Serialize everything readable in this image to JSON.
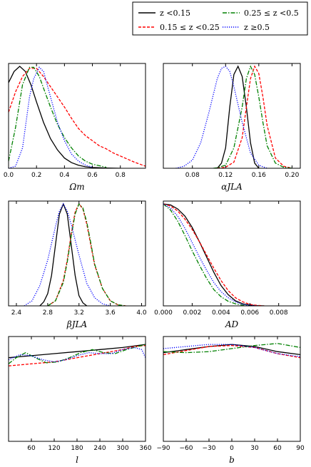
{
  "legend": {
    "entries": [
      {
        "label": "z <0.15",
        "color": "#000000",
        "dash": "solid"
      },
      {
        "label": "0.15 ≤ z <0.25",
        "color": "#ff0000",
        "dash": "dashed"
      },
      {
        "label": "0.25 ≤ z <0.5",
        "color": "#008000",
        "dash": "dashdot"
      },
      {
        "label": "z ≥0.5",
        "color": "#0000ff",
        "dash": "dotted"
      }
    ]
  },
  "chart_data": [
    {
      "type": "line",
      "xlabel": "Ωm",
      "xlim": [
        0,
        0.98
      ],
      "xticks": [
        0.0,
        0.2,
        0.4,
        0.6,
        0.8
      ],
      "tick_labels": [
        "0.0",
        "0.2",
        "0.4",
        "0.6",
        "0.8"
      ],
      "series": [
        {
          "x": [
            0.0,
            0.04,
            0.08,
            0.12,
            0.16,
            0.2,
            0.25,
            0.3,
            0.35,
            0.4,
            0.45,
            0.5,
            0.55,
            0.6,
            0.7,
            0.8
          ],
          "y": [
            0.84,
            0.95,
            1.0,
            0.95,
            0.82,
            0.65,
            0.45,
            0.29,
            0.18,
            0.1,
            0.055,
            0.03,
            0.015,
            0.008,
            0.003,
            0.0
          ]
        },
        {
          "x": [
            0.0,
            0.05,
            0.1,
            0.15,
            0.2,
            0.25,
            0.3,
            0.35,
            0.4,
            0.45,
            0.5,
            0.55,
            0.6,
            0.65,
            0.7,
            0.75,
            0.8,
            0.85,
            0.9,
            0.98
          ],
          "y": [
            0.55,
            0.75,
            0.9,
            0.98,
            0.98,
            0.9,
            0.8,
            0.7,
            0.6,
            0.49,
            0.39,
            0.32,
            0.27,
            0.22,
            0.19,
            0.15,
            0.12,
            0.09,
            0.06,
            0.02
          ]
        },
        {
          "x": [
            0.0,
            0.05,
            0.1,
            0.15,
            0.18,
            0.22,
            0.26,
            0.3,
            0.35,
            0.4,
            0.45,
            0.5,
            0.55,
            0.6,
            0.7
          ],
          "y": [
            0.07,
            0.4,
            0.82,
            0.99,
            0.99,
            0.9,
            0.75,
            0.6,
            0.43,
            0.3,
            0.2,
            0.12,
            0.07,
            0.04,
            0.01
          ]
        },
        {
          "x": [
            0.0,
            0.05,
            0.1,
            0.15,
            0.18,
            0.22,
            0.25,
            0.3,
            0.35,
            0.4,
            0.45,
            0.5,
            0.55,
            0.6
          ],
          "y": [
            0.0,
            0.02,
            0.2,
            0.7,
            0.88,
            0.99,
            0.95,
            0.7,
            0.45,
            0.27,
            0.14,
            0.07,
            0.03,
            0.01
          ]
        }
      ]
    },
    {
      "type": "line",
      "xlabel": "αJLA",
      "xlim": [
        0.045,
        0.21
      ],
      "xticks": [
        0.08,
        0.12,
        0.16,
        0.2
      ],
      "tick_labels": [
        "0.08",
        "0.12",
        "0.16",
        "0.20"
      ],
      "series": [
        {
          "x": [
            0.11,
            0.115,
            0.12,
            0.125,
            0.13,
            0.135,
            0.14,
            0.145,
            0.15,
            0.155,
            0.16
          ],
          "y": [
            0.0,
            0.05,
            0.2,
            0.6,
            0.92,
            1.0,
            0.9,
            0.6,
            0.25,
            0.05,
            0.0
          ]
        },
        {
          "x": [
            0.11,
            0.12,
            0.13,
            0.14,
            0.145,
            0.15,
            0.155,
            0.16,
            0.165,
            0.17,
            0.18,
            0.19,
            0.2
          ],
          "y": [
            0.0,
            0.01,
            0.06,
            0.3,
            0.6,
            0.88,
            1.0,
            0.93,
            0.7,
            0.42,
            0.1,
            0.02,
            0.0
          ]
        },
        {
          "x": [
            0.105,
            0.11,
            0.12,
            0.13,
            0.14,
            0.145,
            0.15,
            0.155,
            0.16,
            0.165,
            0.17,
            0.18,
            0.19,
            0.2
          ],
          "y": [
            0.0,
            0.005,
            0.03,
            0.2,
            0.6,
            0.88,
            1.0,
            0.92,
            0.7,
            0.45,
            0.22,
            0.05,
            0.01,
            0.0
          ]
        },
        {
          "x": [
            0.06,
            0.07,
            0.08,
            0.09,
            0.1,
            0.11,
            0.115,
            0.12,
            0.125,
            0.13,
            0.14,
            0.15,
            0.16,
            0.17
          ],
          "y": [
            0.0,
            0.02,
            0.08,
            0.25,
            0.55,
            0.88,
            0.98,
            1.0,
            0.95,
            0.8,
            0.45,
            0.15,
            0.03,
            0.0
          ]
        }
      ]
    },
    {
      "type": "line",
      "xlabel": "βJLA",
      "xlim": [
        2.3,
        4.05
      ],
      "xticks": [
        2.4,
        2.8,
        3.2,
        3.6,
        4.0
      ],
      "tick_labels": [
        "2.4",
        "2.8",
        "3.2",
        "3.6",
        "4.0"
      ],
      "series": [
        {
          "x": [
            2.7,
            2.75,
            2.8,
            2.85,
            2.9,
            2.95,
            3.0,
            3.05,
            3.1,
            3.15,
            3.2,
            3.25,
            3.3
          ],
          "y": [
            0.0,
            0.04,
            0.12,
            0.3,
            0.6,
            0.9,
            1.0,
            0.9,
            0.6,
            0.3,
            0.1,
            0.03,
            0.0
          ]
        },
        {
          "x": [
            2.8,
            2.9,
            3.0,
            3.05,
            3.1,
            3.15,
            3.2,
            3.25,
            3.3,
            3.35,
            3.4,
            3.5,
            3.6,
            3.7,
            3.8
          ],
          "y": [
            0.0,
            0.05,
            0.25,
            0.45,
            0.7,
            0.92,
            1.0,
            0.95,
            0.8,
            0.6,
            0.4,
            0.17,
            0.05,
            0.01,
            0.0
          ]
        },
        {
          "x": [
            2.8,
            2.9,
            3.0,
            3.05,
            3.1,
            3.15,
            3.2,
            3.25,
            3.3,
            3.35,
            3.4,
            3.5,
            3.6,
            3.7,
            3.8
          ],
          "y": [
            0.0,
            0.05,
            0.23,
            0.43,
            0.68,
            0.9,
            1.0,
            0.96,
            0.82,
            0.62,
            0.41,
            0.17,
            0.05,
            0.01,
            0.0
          ]
        },
        {
          "x": [
            2.5,
            2.6,
            2.7,
            2.8,
            2.9,
            2.95,
            3.0,
            3.05,
            3.1,
            3.2,
            3.3,
            3.4,
            3.5,
            3.6
          ],
          "y": [
            0.0,
            0.05,
            0.2,
            0.45,
            0.78,
            0.93,
            1.0,
            0.93,
            0.8,
            0.5,
            0.22,
            0.08,
            0.02,
            0.0
          ]
        }
      ]
    },
    {
      "type": "line",
      "xlabel": "AD",
      "xlim": [
        0,
        0.0095
      ],
      "xticks": [
        0,
        0.002,
        0.004,
        0.006,
        0.008
      ],
      "tick_labels": [
        "0.000",
        "0.002",
        "0.004",
        "0.006",
        "0.008"
      ],
      "series": [
        {
          "x": [
            0,
            0.0005,
            0.001,
            0.0015,
            0.002,
            0.0025,
            0.003,
            0.0035,
            0.004,
            0.0045,
            0.005,
            0.0055,
            0.006,
            0.0065,
            0.007
          ],
          "y": [
            1.0,
            0.99,
            0.95,
            0.88,
            0.77,
            0.63,
            0.48,
            0.33,
            0.2,
            0.11,
            0.05,
            0.02,
            0.008,
            0.002,
            0.0
          ]
        },
        {
          "x": [
            0,
            0.0005,
            0.001,
            0.0015,
            0.002,
            0.0025,
            0.003,
            0.0035,
            0.004,
            0.0045,
            0.005,
            0.0055,
            0.006,
            0.0065,
            0.007
          ],
          "y": [
            1.0,
            0.98,
            0.93,
            0.85,
            0.75,
            0.63,
            0.5,
            0.37,
            0.25,
            0.15,
            0.08,
            0.04,
            0.015,
            0.005,
            0.0
          ]
        },
        {
          "x": [
            0,
            0.0005,
            0.001,
            0.0015,
            0.002,
            0.0025,
            0.003,
            0.0035,
            0.004,
            0.0045,
            0.005,
            0.0055,
            0.006
          ],
          "y": [
            1.0,
            0.94,
            0.83,
            0.69,
            0.54,
            0.4,
            0.27,
            0.16,
            0.09,
            0.045,
            0.02,
            0.007,
            0.0
          ]
        },
        {
          "x": [
            0,
            0.0005,
            0.001,
            0.0015,
            0.002,
            0.0025,
            0.003,
            0.0035,
            0.004,
            0.0045,
            0.005,
            0.0055,
            0.006,
            0.0065
          ],
          "y": [
            1.0,
            0.96,
            0.88,
            0.76,
            0.62,
            0.48,
            0.35,
            0.23,
            0.14,
            0.08,
            0.04,
            0.015,
            0.005,
            0.0
          ]
        }
      ]
    },
    {
      "type": "line",
      "xlabel": "l",
      "xlim": [
        0,
        360
      ],
      "xticks": [
        60,
        120,
        180,
        240,
        300,
        360
      ],
      "tick_labels": [
        "60",
        "120",
        "180",
        "240",
        "300",
        "360"
      ],
      "series": [
        {
          "x": [
            0,
            60,
            120,
            180,
            240,
            300,
            360
          ],
          "y": [
            0.82,
            0.84,
            0.86,
            0.88,
            0.9,
            0.92,
            0.95
          ]
        },
        {
          "x": [
            0,
            60,
            120,
            180,
            240,
            300,
            330,
            360
          ],
          "y": [
            0.74,
            0.76,
            0.78,
            0.82,
            0.86,
            0.9,
            0.93,
            0.94
          ]
        },
        {
          "x": [
            0,
            20,
            45,
            70,
            100,
            130,
            160,
            190,
            220,
            250,
            280,
            310,
            340,
            360
          ],
          "y": [
            0.76,
            0.82,
            0.87,
            0.82,
            0.77,
            0.78,
            0.82,
            0.87,
            0.9,
            0.87,
            0.86,
            0.9,
            0.93,
            0.95
          ]
        },
        {
          "x": [
            0,
            30,
            60,
            90,
            120,
            150,
            180,
            210,
            240,
            270,
            300,
            330,
            350,
            360
          ],
          "y": [
            0.8,
            0.85,
            0.84,
            0.8,
            0.78,
            0.8,
            0.84,
            0.87,
            0.86,
            0.86,
            0.9,
            0.92,
            0.9,
            0.82
          ]
        }
      ]
    },
    {
      "type": "line",
      "xlabel": "b",
      "xlim": [
        -90,
        90
      ],
      "xticks": [
        -90,
        -60,
        -30,
        0,
        30,
        60,
        90
      ],
      "tick_labels": [
        "−90",
        "−60",
        "−30",
        "0",
        "30",
        "60",
        "90"
      ],
      "series": [
        {
          "x": [
            -90,
            -60,
            -30,
            0,
            30,
            60,
            90
          ],
          "y": [
            0.87,
            0.9,
            0.93,
            0.95,
            0.93,
            0.88,
            0.85
          ]
        },
        {
          "x": [
            -90,
            -60,
            -30,
            0,
            30,
            60,
            90
          ],
          "y": [
            0.85,
            0.89,
            0.93,
            0.94,
            0.92,
            0.86,
            0.82
          ]
        },
        {
          "x": [
            -90,
            -60,
            -30,
            0,
            30,
            60,
            90
          ],
          "y": [
            0.88,
            0.87,
            0.88,
            0.91,
            0.94,
            0.96,
            0.92
          ]
        },
        {
          "x": [
            -90,
            -60,
            -30,
            0,
            30,
            60,
            90
          ],
          "y": [
            0.91,
            0.93,
            0.95,
            0.95,
            0.92,
            0.86,
            0.83
          ]
        }
      ]
    }
  ]
}
